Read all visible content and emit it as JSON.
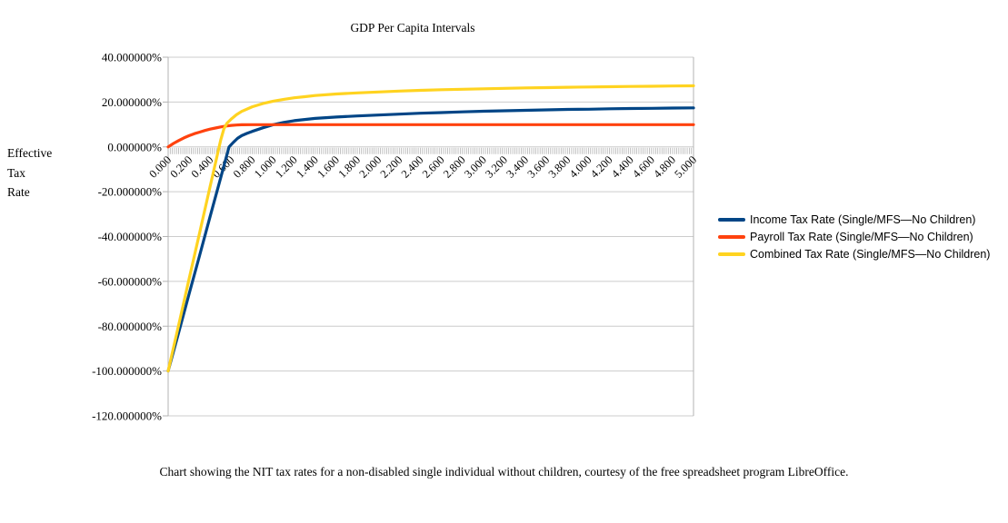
{
  "title": "GDP Per Capita Intervals",
  "y_axis_title": "Effective\nTax\nRate",
  "caption": "Chart showing the NIT tax rates for a non-disabled single individual without children, courtesy of the free spreadsheet program LibreOffice.",
  "colors": {
    "income_series": "#004586",
    "payroll_series": "#FF420E",
    "combined_series": "#FFD320",
    "gridline": "#cccccc",
    "axis": "#b3b3b3",
    "text": "#000000"
  },
  "chart_data": {
    "type": "line",
    "title": "GDP Per Capita Intervals",
    "xlabel": "GDP Per Capita Intervals",
    "ylabel": "Effective Tax Rate",
    "xlim": [
      0,
      5
    ],
    "ylim": [
      -120,
      40
    ],
    "grid": "horizontal",
    "legend_position": "right",
    "x_minor_tick_interval": 0.02,
    "x_major_tick_interval": 0.2,
    "x_tick_labels": [
      "0.000",
      "0.200",
      "0.400",
      "0.600",
      "0.800",
      "1.000",
      "1.200",
      "1.400",
      "1.600",
      "1.800",
      "2.000",
      "2.200",
      "2.400",
      "2.600",
      "2.800",
      "3.000",
      "3.200",
      "3.400",
      "3.600",
      "3.800",
      "4.000",
      "4.200",
      "4.400",
      "4.600",
      "4.800",
      "5.000"
    ],
    "y_tick_values": [
      40,
      20,
      0,
      -20,
      -40,
      -60,
      -80,
      -100,
      -120
    ],
    "y_tick_labels": [
      "40.000000%",
      "20.000000%",
      "0.000000%",
      "-20.000000%",
      "-40.000000%",
      "-60.000000%",
      "-80.000000%",
      "-100.000000%",
      "-120.000000%"
    ],
    "series": [
      {
        "name": "Income Tax Rate (Single/MFS—No Children)",
        "color": "#004586",
        "points": [
          [
            0,
            -100
          ],
          [
            0.1,
            -82.8
          ],
          [
            0.2,
            -65.5
          ],
          [
            0.3,
            -48.3
          ],
          [
            0.4,
            -31
          ],
          [
            0.5,
            -13.8
          ],
          [
            0.58,
            0
          ],
          [
            0.62,
            2
          ],
          [
            0.66,
            3.8
          ],
          [
            0.7,
            5
          ],
          [
            0.75,
            6
          ],
          [
            0.8,
            6.9
          ],
          [
            0.9,
            8.5
          ],
          [
            1,
            9.9
          ],
          [
            1.1,
            10.9
          ],
          [
            1.2,
            11.7
          ],
          [
            1.3,
            12.2
          ],
          [
            1.4,
            12.7
          ],
          [
            1.6,
            13.3
          ],
          [
            1.8,
            13.8
          ],
          [
            2,
            14.2
          ],
          [
            2.2,
            14.6
          ],
          [
            2.4,
            15
          ],
          [
            2.6,
            15.3
          ],
          [
            2.8,
            15.6
          ],
          [
            3,
            15.9
          ],
          [
            3.2,
            16.1
          ],
          [
            3.4,
            16.3
          ],
          [
            3.6,
            16.5
          ],
          [
            3.8,
            16.7
          ],
          [
            4,
            16.8
          ],
          [
            4.2,
            17
          ],
          [
            4.4,
            17.1
          ],
          [
            4.6,
            17.2
          ],
          [
            4.8,
            17.3
          ],
          [
            5,
            17.4
          ]
        ]
      },
      {
        "name": "Payroll Tax Rate (Single/MFS—No Children)",
        "color": "#FF420E",
        "points": [
          [
            0,
            0
          ],
          [
            0.05,
            1.5
          ],
          [
            0.1,
            2.8
          ],
          [
            0.15,
            4
          ],
          [
            0.2,
            5
          ],
          [
            0.25,
            5.9
          ],
          [
            0.3,
            6.6
          ],
          [
            0.35,
            7.3
          ],
          [
            0.4,
            7.9
          ],
          [
            0.45,
            8.4
          ],
          [
            0.5,
            8.9
          ],
          [
            0.55,
            9.3
          ],
          [
            0.6,
            9.6
          ],
          [
            0.65,
            9.75
          ],
          [
            0.7,
            9.85
          ],
          [
            0.8,
            9.9
          ],
          [
            0.9,
            9.9
          ],
          [
            1,
            9.9
          ],
          [
            1.5,
            9.9
          ],
          [
            2,
            9.9
          ],
          [
            2.5,
            9.9
          ],
          [
            3,
            9.9
          ],
          [
            3.5,
            9.9
          ],
          [
            4,
            9.9
          ],
          [
            4.5,
            9.9
          ],
          [
            5,
            9.9
          ]
        ]
      },
      {
        "name": "Combined Tax Rate (Single/MFS—No Children)",
        "color": "#FFD320",
        "points": [
          [
            0,
            -100
          ],
          [
            0.1,
            -79.4
          ],
          [
            0.2,
            -58.8
          ],
          [
            0.3,
            -38.2
          ],
          [
            0.4,
            -17.6
          ],
          [
            0.45,
            -7.3
          ],
          [
            0.5,
            3
          ],
          [
            0.53,
            8
          ],
          [
            0.56,
            10.5
          ],
          [
            0.6,
            12.4
          ],
          [
            0.65,
            14.3
          ],
          [
            0.7,
            15.8
          ],
          [
            0.8,
            17.9
          ],
          [
            0.9,
            19.3
          ],
          [
            1,
            20.4
          ],
          [
            1.1,
            21.2
          ],
          [
            1.2,
            21.9
          ],
          [
            1.3,
            22.4
          ],
          [
            1.4,
            22.9
          ],
          [
            1.6,
            23.6
          ],
          [
            1.8,
            24.1
          ],
          [
            2,
            24.5
          ],
          [
            2.2,
            24.9
          ],
          [
            2.4,
            25.2
          ],
          [
            2.6,
            25.5
          ],
          [
            2.8,
            25.7
          ],
          [
            3,
            25.9
          ],
          [
            3.2,
            26.1
          ],
          [
            3.4,
            26.3
          ],
          [
            3.6,
            26.45
          ],
          [
            3.8,
            26.6
          ],
          [
            4,
            26.7
          ],
          [
            4.2,
            26.85
          ],
          [
            4.4,
            26.95
          ],
          [
            4.6,
            27.05
          ],
          [
            4.8,
            27.15
          ],
          [
            5,
            27.25
          ]
        ]
      }
    ]
  }
}
